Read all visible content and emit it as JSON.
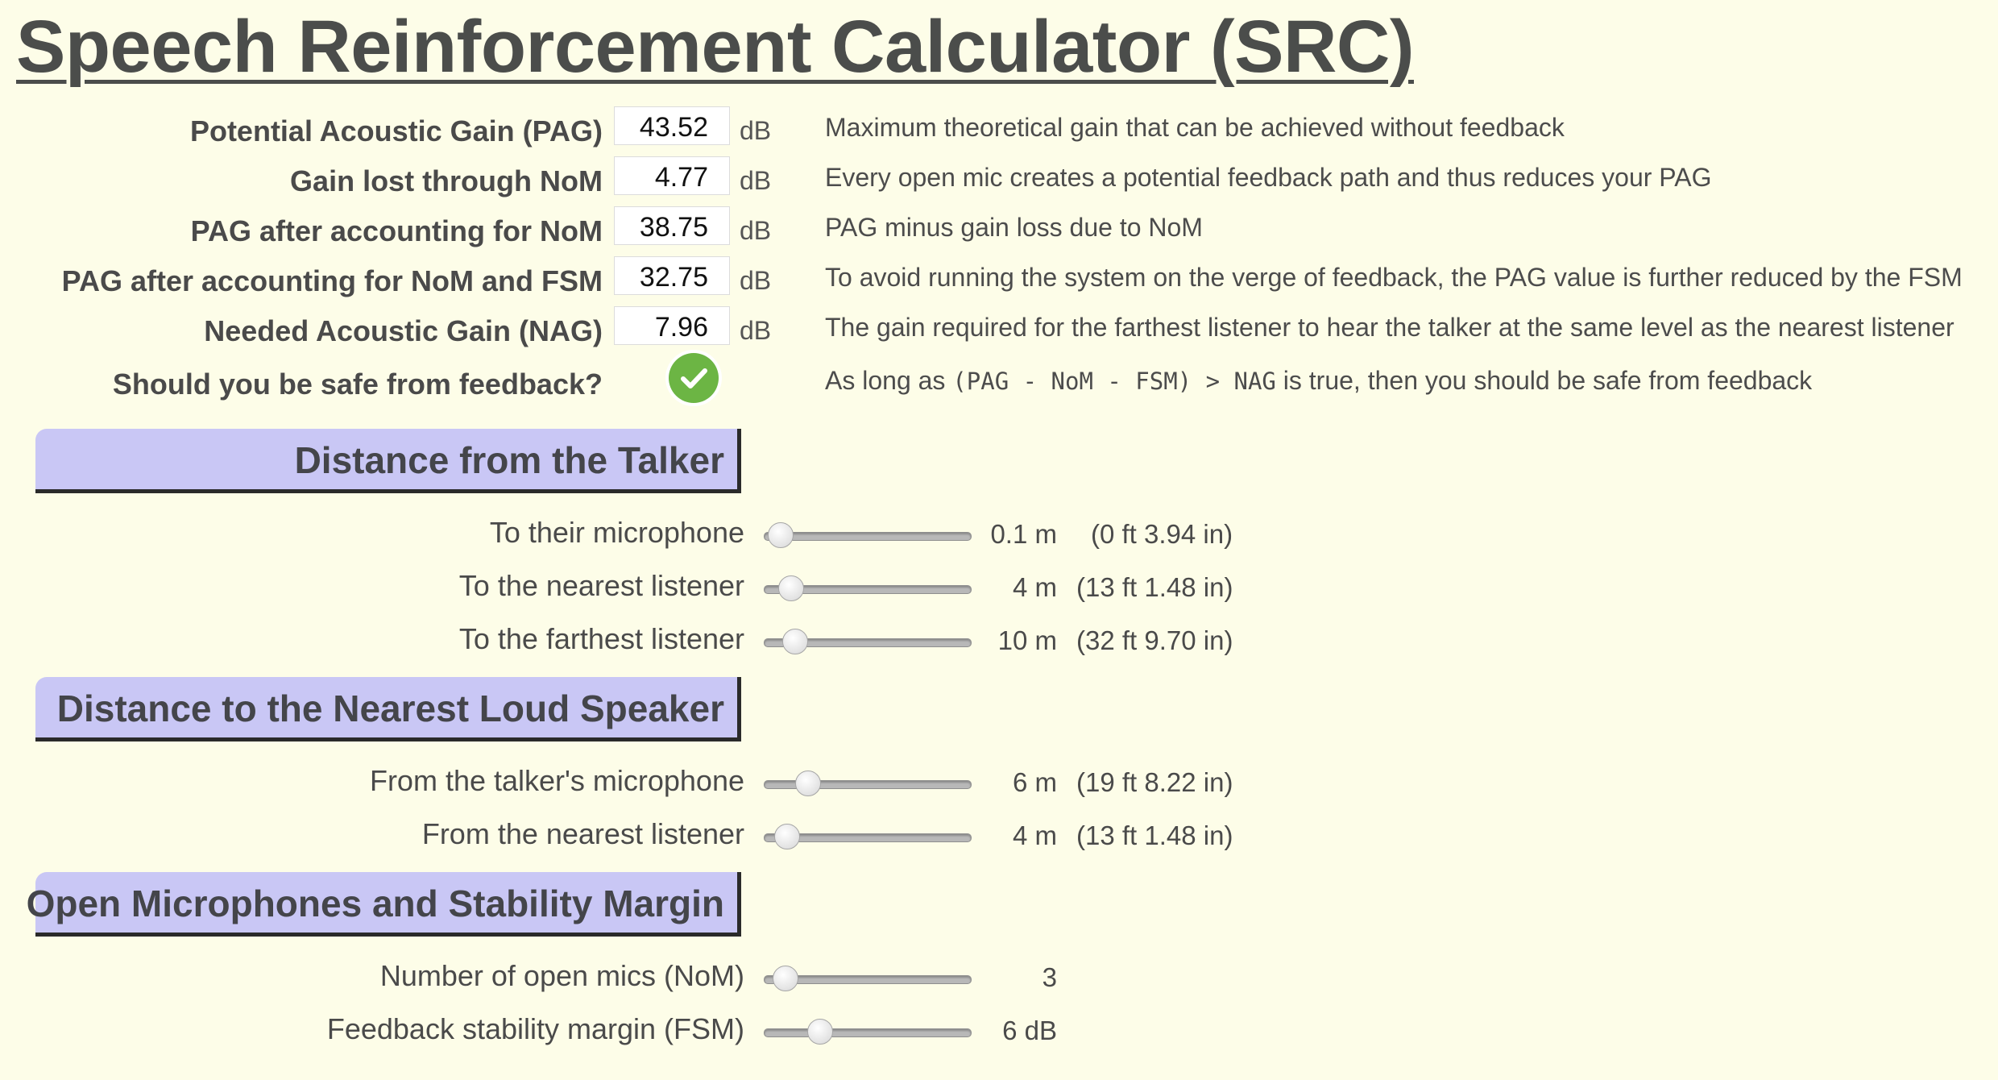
{
  "title": "Speech Reinforcement Calculator (SRC)",
  "results": [
    {
      "label": "Potential Acoustic Gain (PAG)",
      "value": "43.52",
      "unit": "dB",
      "description": "Maximum theoretical gain that can be achieved without feedback"
    },
    {
      "label": "Gain lost through NoM",
      "value": "4.77",
      "unit": "dB",
      "description": "Every open mic creates a potential feedback path and thus reduces your PAG"
    },
    {
      "label": "PAG after accounting for NoM",
      "value": "38.75",
      "unit": "dB",
      "description": "PAG minus gain loss due to NoM"
    },
    {
      "label": "PAG after accounting for NoM and FSM",
      "value": "32.75",
      "unit": "dB",
      "description": "To avoid running the system on the verge of feedback, the PAG value is further reduced by the FSM"
    },
    {
      "label": "Needed Acoustic Gain (NAG)",
      "value": "7.96",
      "unit": "dB",
      "description": "The gain required for the farthest listener to hear the talker at the same level as the nearest listener"
    }
  ],
  "safety": {
    "label": "Should you be safe from feedback?",
    "status": "safe",
    "icon": "check-circle-icon",
    "color": "#6cb544",
    "desc_prefix": "As long as",
    "formula": "(PAG - NoM - FSM) > NAG",
    "desc_suffix": "is true, then you should be safe from feedback"
  },
  "sections": [
    {
      "title": "Distance from the Talker",
      "sliders": [
        {
          "label": "To their microphone",
          "value": "0.1 m",
          "imperial": "(0 ft 3.94 in)",
          "level": 0.08
        },
        {
          "label": "To the nearest listener",
          "value": "4 m",
          "imperial": "(13 ft 1.48 in)",
          "level": 0.13
        },
        {
          "label": "To the farthest listener",
          "value": "10 m",
          "imperial": "(32 ft 9.70 in)",
          "level": 0.15
        }
      ]
    },
    {
      "title": "Distance to the Nearest Loud Speaker",
      "sliders": [
        {
          "label": "From the talker's microphone",
          "value": "6 m",
          "imperial": "(19 ft 8.22 in)",
          "level": 0.21
        },
        {
          "label": "From the nearest listener",
          "value": "4 m",
          "imperial": "(13 ft 1.48 in)",
          "level": 0.11
        }
      ]
    },
    {
      "title": "Open Microphones and Stability Margin",
      "sliders": [
        {
          "label": "Number of open mics (NoM)",
          "value": "3",
          "imperial": "",
          "level": 0.1
        },
        {
          "label": "Feedback stability margin (FSM)",
          "value": "6 dB",
          "imperial": "",
          "level": 0.27
        }
      ]
    }
  ],
  "colors": {
    "background": "#fdfde8",
    "section_header": "#c9c7f5",
    "text": "#4a4a4a"
  }
}
